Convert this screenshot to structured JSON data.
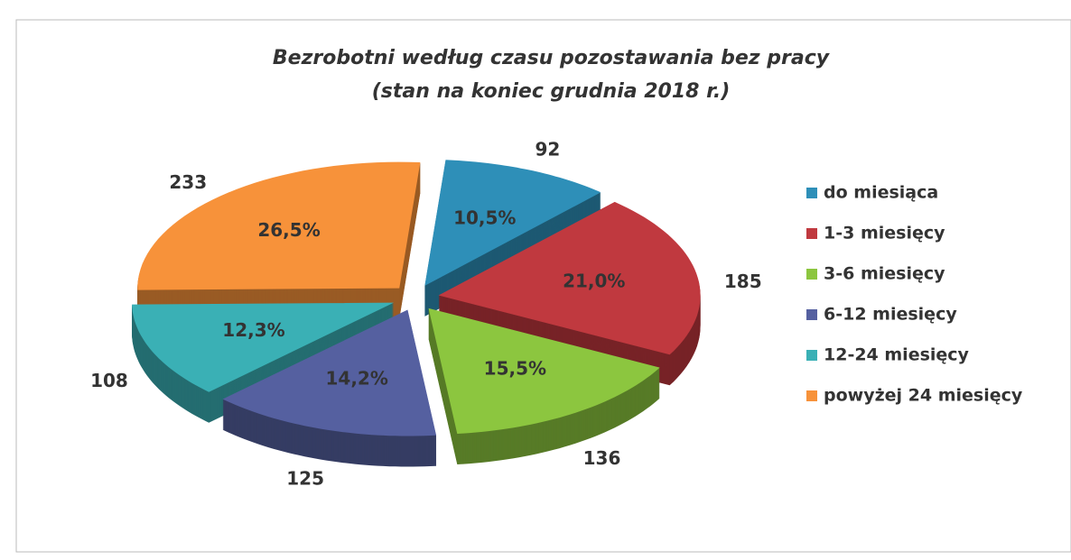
{
  "chart_data": {
    "type": "pie3d",
    "title": "Bezrobotni według czasu pozostawania bez pracy",
    "subtitle": "(stan na koniec grudnia 2018 r.)",
    "categories": [
      "do miesiąca",
      "1-3 miesięcy",
      "3-6 miesięcy",
      "6-12 miesięcy",
      "12-24 miesięcy",
      "powyżej 24 miesięcy"
    ],
    "values": [
      92,
      185,
      136,
      125,
      108,
      233
    ],
    "shares": {
      "values": [
        10.5,
        21.0,
        15.5,
        14.2,
        12.3,
        26.5
      ],
      "value_labels": [
        "10,5%",
        "21,0%",
        "15,5%",
        "14,2%",
        "12,3%",
        "26,5%"
      ]
    },
    "colors": [
      "#2e8fb8",
      "#c0393f",
      "#8cc63f",
      "#5560a0",
      "#3ab0b5",
      "#f7923a"
    ],
    "legend": "right"
  }
}
